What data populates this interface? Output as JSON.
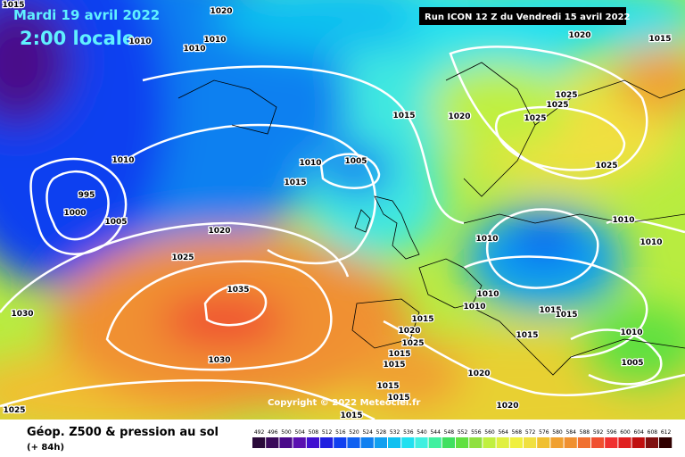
{
  "header": {
    "date": "Mardi 19 avril 2022",
    "time": "2:00 locale"
  },
  "run": "Run ICON 12 Z du Vendredi 15 avril 2022",
  "copyright": "Copyright © 2022 Meteociel.fr",
  "footer": {
    "title": "Géop. Z500 & pression au sol",
    "lead": "(+ 84h)"
  },
  "legend": {
    "labels": [
      492,
      496,
      500,
      504,
      508,
      512,
      516,
      520,
      524,
      528,
      532,
      536,
      540,
      544,
      548,
      552,
      556,
      560,
      564,
      568,
      572,
      576,
      580,
      584,
      588,
      592,
      596,
      600,
      604,
      608,
      612
    ],
    "colors": [
      "#2a0a3a",
      "#3a0a5a",
      "#4a0a8a",
      "#5a10b0",
      "#4010d0",
      "#2020e0",
      "#1040f0",
      "#1060f0",
      "#1080f0",
      "#10a0f0",
      "#10c0f0",
      "#20e0f0",
      "#40f0e0",
      "#40f0a0",
      "#40e060",
      "#60e040",
      "#90e040",
      "#c0f040",
      "#e0f040",
      "#f0f040",
      "#f0e040",
      "#f0c030",
      "#f0a030",
      "#f09030",
      "#f07030",
      "#f05030",
      "#f03030",
      "#e02020",
      "#c01010",
      "#801010",
      "#300000"
    ]
  },
  "isobar_labels": [
    1015,
    1020,
    1010,
    1010,
    1010,
    1020,
    1015,
    1015,
    1020,
    1025,
    1025,
    1025,
    1025,
    1010,
    1010,
    1005,
    1015,
    995,
    1000,
    1005,
    1020,
    1025,
    1010,
    1010,
    1010,
    1035,
    1030,
    1010,
    1010,
    1015,
    1015,
    1015,
    1020,
    1025,
    1015,
    1010,
    1030,
    1015,
    1015,
    1005,
    1020,
    1015,
    1015,
    1020,
    1025,
    1015
  ]
}
